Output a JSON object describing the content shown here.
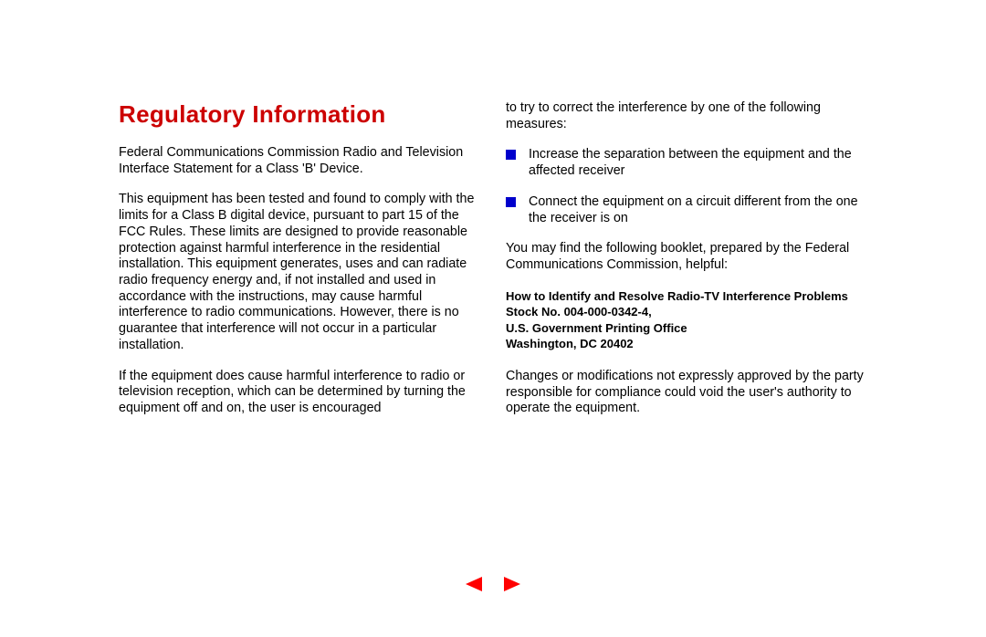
{
  "colors": {
    "title": "#cc0000",
    "bullet": "#0000cc",
    "nav_arrow": "#ff0000",
    "text": "#000000",
    "background": "#ffffff"
  },
  "typography": {
    "title_fontsize": 26,
    "title_weight": 900,
    "body_fontsize": 14.3,
    "bold_block_fontsize": 13,
    "font_family": "Arial, Helvetica, sans-serif"
  },
  "title": "Regulatory Information",
  "left_column": {
    "p1": "Federal Communications Commission Radio and Television Interface Statement for a Class 'B' Device.",
    "p2": "This equipment has been tested and found to comply with the limits for a Class B digital device, pursuant to part 15 of the FCC Rules. These limits are designed to provide reasonable protection against harmful interference in the residential installation. This equipment generates, uses and can radiate radio frequency energy and, if not installed and used in accordance with the instructions, may cause harmful interference to radio communications. However, there is no guarantee that interference will not occur in a particular installation.",
    "p3": "If the equipment does cause harmful interference to radio or television reception, which can be determined by turning the equipment off and on, the user is encouraged"
  },
  "right_column": {
    "p1": "to try to correct the interference by one of the following measures:",
    "bullets": [
      "Increase the separation between the equipment and the affected receiver",
      "Connect the equipment on a circuit different from the one the receiver is on"
    ],
    "p2": "You may find the following booklet, prepared by the Federal Communications Commission, helpful:",
    "bold": {
      "l1": "How to Identify and Resolve Radio-TV Interference Problems",
      "l2": "Stock No. 004-000-0342-4,",
      "l3": "U.S. Government Printing Office",
      "l4": "Washington, DC 20402"
    },
    "p3": "Changes or modifications not expressly approved by the party responsible for compliance could void the user's authority to operate the equipment."
  },
  "nav": {
    "prev": "previous-page",
    "next": "next-page"
  }
}
